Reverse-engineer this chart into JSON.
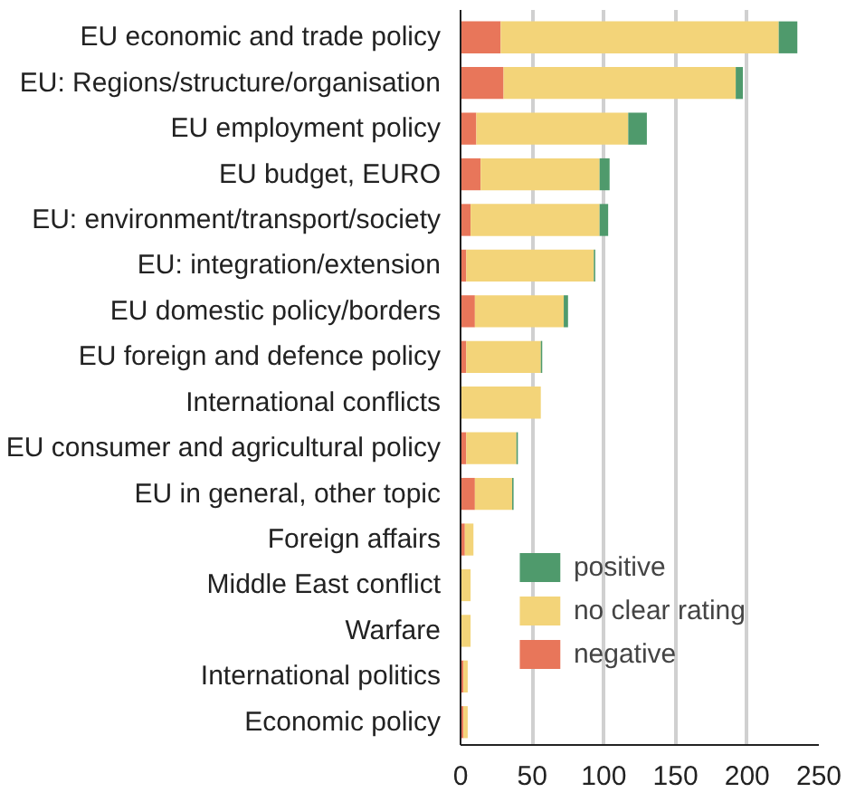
{
  "chart_data": {
    "type": "bar",
    "orientation": "horizontal",
    "stacked": true,
    "categories": [
      "EU economic and trade policy",
      "EU: Regions/structure/organisation",
      "EU employment policy",
      "EU budget, EURO",
      "EU: environment/transport/society",
      "EU: integration/extension",
      "EU domestic policy/borders",
      "EU foreign and defence policy",
      "International conflicts",
      "EU consumer and agricultural policy",
      "EU in general, other topic",
      "Foreign affairs",
      "Middle East conflict",
      "Warfare",
      "International politics",
      "Economic policy"
    ],
    "series": [
      {
        "name": "negative",
        "color": "#e8765a",
        "values": [
          28,
          30,
          11,
          14,
          7,
          4,
          10,
          4,
          0,
          4,
          10,
          3,
          0,
          0,
          2,
          2
        ]
      },
      {
        "name": "no clear rating",
        "color": "#f3d479",
        "values": [
          194,
          162,
          106,
          83,
          90,
          89,
          62,
          52,
          56,
          35,
          26,
          6,
          7,
          7,
          3,
          3
        ]
      },
      {
        "name": "positive",
        "color": "#4f9a6c",
        "values": [
          13,
          5,
          13,
          7,
          6,
          1,
          3,
          1,
          0,
          1,
          1,
          0,
          0,
          0,
          0,
          0
        ]
      }
    ],
    "xlim": [
      0,
      250
    ],
    "xticks": [
      0,
      50,
      100,
      150,
      200,
      250
    ],
    "grid": "x",
    "legend": "bottom right"
  }
}
